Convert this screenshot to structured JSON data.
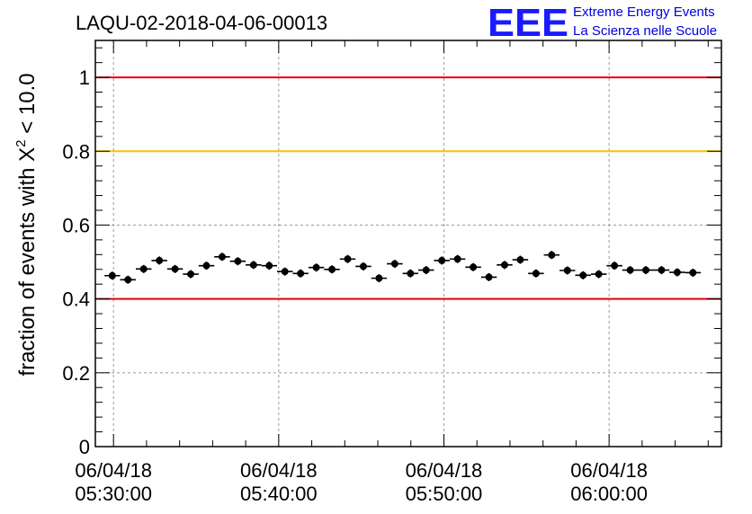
{
  "chart_data": {
    "type": "scatter",
    "title": "LAQU-02-2018-04-06-00013",
    "ylabel": "fraction of events with X^2 < 10.0",
    "ylabel_main": "fraction of events with X",
    "ylabel_sup": "2",
    "ylabel_tail": " < 10.0",
    "ylim": [
      0,
      1.1
    ],
    "xlim_minutes": [
      -1.1,
      36.8
    ],
    "y_ticks": [
      {
        "value": 0,
        "label": "0"
      },
      {
        "value": 0.2,
        "label": "0.2"
      },
      {
        "value": 0.4,
        "label": "0.4"
      },
      {
        "value": 0.6,
        "label": "0.6"
      },
      {
        "value": 0.8,
        "label": "0.8"
      },
      {
        "value": 1,
        "label": "1"
      }
    ],
    "x_ticks": [
      {
        "minute": 0,
        "date": "06/04/18",
        "time": "05:30:00"
      },
      {
        "minute": 10,
        "date": "06/04/18",
        "time": "05:40:00"
      },
      {
        "minute": 20,
        "date": "06/04/18",
        "time": "05:50:00"
      },
      {
        "minute": 30,
        "date": "06/04/18",
        "time": "06:00:00"
      }
    ],
    "reference_lines": [
      {
        "value": 1.0,
        "color": "#e8000b"
      },
      {
        "value": 0.8,
        "color": "#ffc000"
      },
      {
        "value": 0.4,
        "color": "#e8000b"
      }
    ],
    "bin_width_minutes": 0.95,
    "x_start_minute": -0.55,
    "values": [
      0.463,
      0.452,
      0.481,
      0.504,
      0.481,
      0.467,
      0.49,
      0.514,
      0.502,
      0.492,
      0.49,
      0.474,
      0.469,
      0.485,
      0.48,
      0.508,
      0.488,
      0.456,
      0.495,
      0.469,
      0.478,
      0.504,
      0.508,
      0.486,
      0.459,
      0.492,
      0.506,
      0.469,
      0.519,
      0.477,
      0.464,
      0.467,
      0.49,
      0.478,
      0.478,
      0.478,
      0.472,
      0.471
    ],
    "y_error": 0.011,
    "marker_color": "#000000"
  },
  "logo": {
    "mark": "EEE",
    "line1": "Extreme Energy Events",
    "line2": "La Scienza nelle Scuole"
  }
}
